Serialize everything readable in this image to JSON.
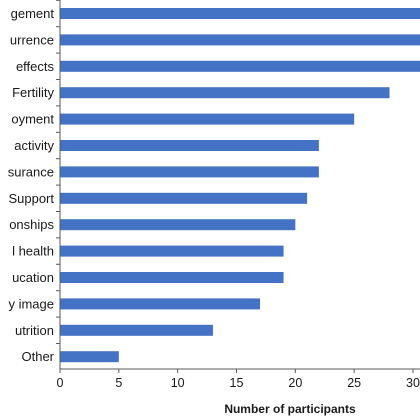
{
  "chart_data": {
    "type": "bar",
    "orientation": "horizontal",
    "categories": [
      "gement",
      "urrence",
      "effects",
      "Fertility",
      "oyment",
      "activity",
      "surance",
      "Support",
      "onships",
      "l health",
      "ucation",
      "y image",
      "utrition",
      "Other"
    ],
    "values": [
      31,
      31,
      31,
      28,
      25,
      22,
      22,
      21,
      20,
      19,
      19,
      17,
      13,
      5
    ],
    "title": "",
    "xlabel": "Number of participants",
    "ylabel": "",
    "xlim": [
      0,
      30
    ],
    "xticks": [
      "0",
      "5",
      "10",
      "15",
      "20",
      "25",
      "30"
    ],
    "grid": false,
    "legend": "none",
    "bar_color": "#4472c4"
  }
}
